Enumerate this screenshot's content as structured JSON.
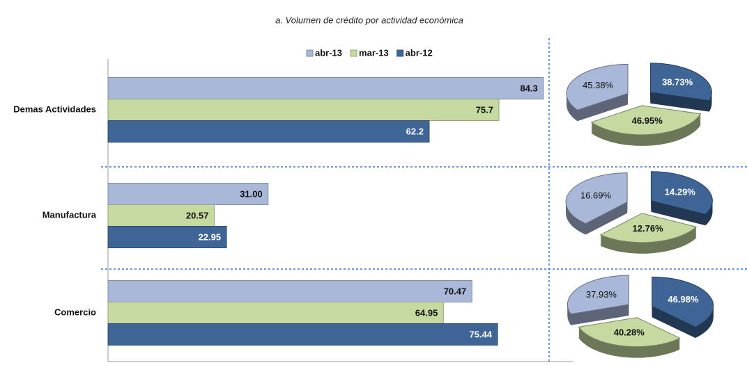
{
  "chart_data": [
    {
      "type": "hbar",
      "title": "a.    Volumen de crédito por actividad  económica",
      "categories": [
        "Demas Actividades",
        "Manufactura",
        "Comercio"
      ],
      "series": [
        {
          "name": "abr-13",
          "color": "#a9b8d9",
          "values": [
            84.3,
            31.0,
            70.47
          ],
          "value_labels": [
            "84.3",
            "31.00",
            "70.47"
          ]
        },
        {
          "name": "mar-13",
          "color": "#c5d9a0",
          "values": [
            75.7,
            20.57,
            64.95
          ],
          "value_labels": [
            "75.7",
            "20.57",
            "64.95"
          ]
        },
        {
          "name": "abr-12",
          "color": "#3f6597",
          "values": [
            62.2,
            22.95,
            75.44
          ],
          "value_labels": [
            "62.2",
            "22.95",
            "75.44"
          ]
        }
      ],
      "xlim": [
        0,
        90
      ]
    },
    {
      "type": "pie",
      "values": [
        45.38,
        46.95,
        38.73
      ],
      "value_labels": [
        "45.38%",
        "46.95%",
        "38.73%"
      ],
      "colors": [
        "#a9b8d9",
        "#c5d9a0",
        "#3f6597"
      ]
    },
    {
      "type": "pie",
      "values": [
        16.69,
        12.76,
        14.29
      ],
      "value_labels": [
        "16.69%",
        "12.76%",
        "14.29%"
      ],
      "colors": [
        "#a9b8d9",
        "#c5d9a0",
        "#3f6597"
      ]
    },
    {
      "type": "pie",
      "values": [
        37.93,
        40.28,
        46.98
      ],
      "value_labels": [
        "37.93%",
        "40.28%",
        "46.98%"
      ],
      "colors": [
        "#a9b8d9",
        "#c5d9a0",
        "#3f6597"
      ]
    }
  ]
}
